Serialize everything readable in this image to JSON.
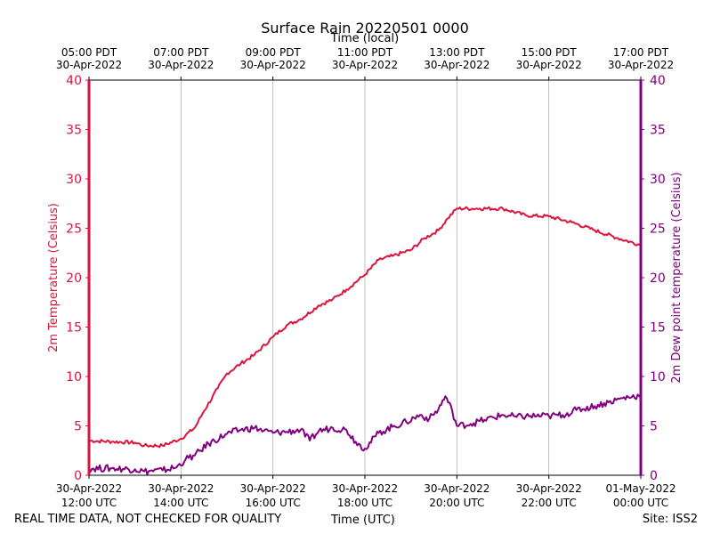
{
  "chart_data": {
    "type": "line",
    "title": "Surface Rain 20220501 0000",
    "top_axis_label": "Time (local)",
    "xlabel": "Time (UTC)",
    "ylabel_left": "2m Temperature (Celsius)",
    "ylabel_right": "2m Dew point temperature (Celsius)",
    "x_unit": "hours since 30-Apr-2022 12:00 UTC",
    "xlim": [
      0,
      12
    ],
    "ylim": [
      0,
      40
    ],
    "y_ticks": [
      "0",
      "5",
      "10",
      "15",
      "20",
      "25",
      "30",
      "35",
      "40"
    ],
    "grid": "vertical",
    "bottom_ticks": [
      {
        "x": 0,
        "date": "30-Apr-2022",
        "time": "12:00 UTC"
      },
      {
        "x": 2,
        "date": "30-Apr-2022",
        "time": "14:00 UTC"
      },
      {
        "x": 4,
        "date": "30-Apr-2022",
        "time": "16:00 UTC"
      },
      {
        "x": 6,
        "date": "30-Apr-2022",
        "time": "18:00 UTC"
      },
      {
        "x": 8,
        "date": "30-Apr-2022",
        "time": "20:00 UTC"
      },
      {
        "x": 10,
        "date": "30-Apr-2022",
        "time": "22:00 UTC"
      },
      {
        "x": 12,
        "date": "01-May-2022",
        "time": "00:00 UTC"
      }
    ],
    "top_ticks": [
      {
        "x": 0,
        "time": "05:00 PDT",
        "date": "30-Apr-2022"
      },
      {
        "x": 2,
        "time": "07:00 PDT",
        "date": "30-Apr-2022"
      },
      {
        "x": 4,
        "time": "09:00 PDT",
        "date": "30-Apr-2022"
      },
      {
        "x": 6,
        "time": "11:00 PDT",
        "date": "30-Apr-2022"
      },
      {
        "x": 8,
        "time": "13:00 PDT",
        "date": "30-Apr-2022"
      },
      {
        "x": 10,
        "time": "15:00 PDT",
        "date": "30-Apr-2022"
      },
      {
        "x": 12,
        "time": "17:00 PDT",
        "date": "30-Apr-2022"
      }
    ],
    "series": [
      {
        "name": "2m Temperature",
        "axis": "left",
        "color": "#dc143c",
        "x": [
          0,
          0.5,
          1.0,
          1.2,
          1.6,
          2.0,
          2.3,
          2.5,
          2.8,
          3.0,
          3.3,
          3.6,
          4.0,
          4.3,
          4.6,
          5.0,
          5.3,
          5.6,
          6.0,
          6.3,
          6.6,
          7.0,
          7.3,
          7.6,
          7.8,
          8.0,
          8.5,
          9.0,
          9.5,
          10.0,
          10.5,
          11.0,
          11.5,
          12.0
        ],
        "values": [
          3.5,
          3.4,
          3.3,
          3.0,
          3.0,
          3.7,
          4.8,
          6.5,
          8.8,
          10.3,
          11.3,
          12.2,
          14.0,
          15.2,
          15.8,
          17.2,
          17.8,
          18.8,
          20.3,
          21.8,
          22.2,
          22.8,
          24.0,
          24.8,
          26.0,
          27.0,
          27.0,
          27.0,
          26.3,
          26.2,
          25.6,
          24.8,
          24.0,
          23.3
        ]
      },
      {
        "name": "2m Dew point temperature",
        "axis": "right",
        "color": "#800080",
        "x": [
          0,
          0.5,
          1.0,
          1.2,
          1.6,
          1.9,
          2.1,
          2.3,
          2.6,
          3.0,
          3.3,
          3.6,
          3.8,
          4.0,
          4.3,
          4.6,
          4.8,
          5.0,
          5.3,
          5.6,
          5.8,
          6.0,
          6.3,
          6.6,
          6.9,
          7.2,
          7.4,
          7.6,
          7.75,
          7.9,
          8.0,
          8.3,
          8.6,
          9.0,
          9.3,
          9.6,
          10.0,
          10.3,
          10.6,
          11.0,
          11.3,
          11.6,
          12.0
        ],
        "values": [
          0.7,
          0.7,
          0.6,
          0.4,
          0.5,
          0.8,
          1.6,
          2.0,
          3.2,
          4.2,
          4.6,
          4.8,
          4.5,
          4.3,
          4.4,
          4.6,
          3.5,
          4.5,
          4.8,
          4.6,
          3.4,
          2.7,
          4.3,
          4.9,
          5.4,
          6.1,
          5.7,
          6.7,
          8.0,
          6.5,
          5.0,
          5.2,
          5.6,
          6.1,
          5.9,
          6.0,
          6.0,
          6.1,
          6.6,
          7.0,
          7.4,
          7.8,
          8.1
        ]
      }
    ]
  },
  "footer": {
    "disclaimer": "REAL TIME DATA, NOT CHECKED FOR QUALITY",
    "site": "Site: ISS2"
  }
}
